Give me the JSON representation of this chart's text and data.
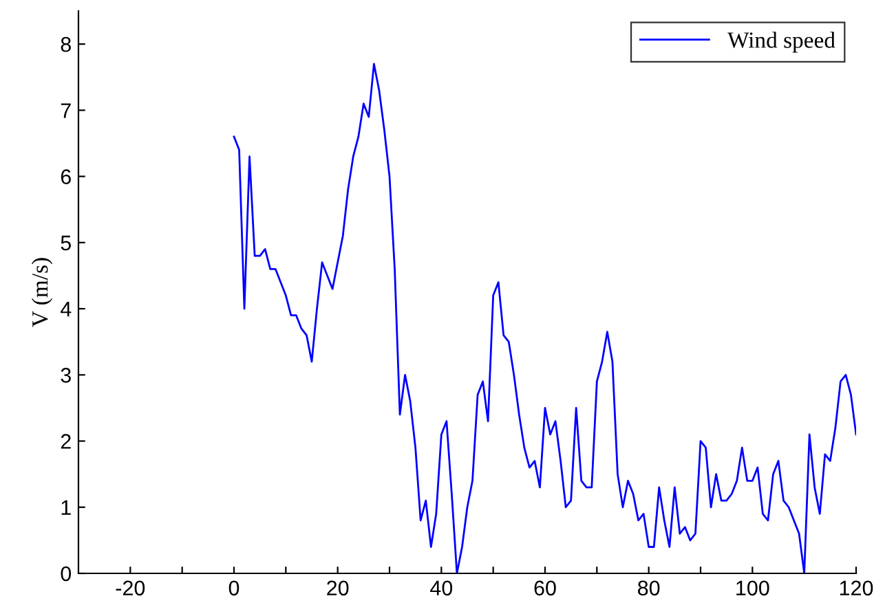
{
  "chart_data": {
    "type": "line",
    "ylabel": "V (m/s)",
    "x": [
      0,
      1,
      2,
      3,
      4,
      5,
      6,
      7,
      8,
      9,
      10,
      11,
      12,
      13,
      14,
      15,
      16,
      17,
      18,
      19,
      20,
      21,
      22,
      23,
      24,
      25,
      26,
      27,
      28,
      29,
      30,
      31,
      32,
      33,
      34,
      35,
      36,
      37,
      38,
      39,
      40,
      41,
      42,
      43,
      44,
      45,
      46,
      47,
      48,
      49,
      50,
      51,
      52,
      53,
      54,
      55,
      56,
      57,
      58,
      59,
      60,
      61,
      62,
      63,
      64,
      65,
      66,
      67,
      68,
      69,
      70,
      71,
      72,
      73,
      74,
      75,
      76,
      77,
      78,
      79,
      80,
      81,
      82,
      83,
      84,
      85,
      86,
      87,
      88,
      89,
      90,
      91,
      92,
      93,
      94,
      95,
      96,
      97,
      98,
      99,
      100,
      101,
      102,
      103,
      104,
      105,
      106,
      107,
      108,
      109,
      110,
      111,
      112,
      113,
      114,
      115,
      116,
      117,
      118,
      119,
      120
    ],
    "series": [
      {
        "name": "Wind speed",
        "color": "#0000ff",
        "values": [
          6.6,
          6.4,
          4.0,
          6.3,
          4.8,
          4.8,
          4.9,
          4.6,
          4.6,
          4.4,
          4.2,
          3.9,
          3.9,
          3.7,
          3.6,
          3.2,
          4.0,
          4.7,
          4.5,
          4.3,
          4.7,
          5.1,
          5.8,
          6.3,
          6.6,
          7.1,
          6.9,
          7.7,
          7.3,
          6.7,
          6.0,
          4.6,
          2.4,
          3.0,
          2.6,
          1.9,
          0.8,
          1.1,
          0.4,
          0.9,
          2.1,
          2.3,
          1.2,
          0.0,
          0.4,
          1.0,
          1.4,
          2.7,
          2.9,
          2.3,
          4.2,
          4.4,
          3.6,
          3.5,
          3.0,
          2.4,
          1.9,
          1.6,
          1.7,
          1.3,
          2.5,
          2.1,
          2.3,
          1.7,
          1.0,
          1.1,
          2.5,
          1.4,
          1.3,
          1.3,
          2.9,
          3.2,
          3.65,
          3.2,
          1.5,
          1.0,
          1.4,
          1.2,
          0.8,
          0.9,
          0.4,
          0.4,
          1.3,
          0.8,
          0.4,
          1.3,
          0.6,
          0.7,
          0.5,
          0.6,
          2.0,
          1.9,
          1.0,
          1.5,
          1.1,
          1.1,
          1.2,
          1.4,
          1.9,
          1.4,
          1.4,
          1.6,
          0.9,
          0.8,
          1.5,
          1.7,
          1.1,
          1.0,
          0.8,
          0.6,
          0.0,
          2.1,
          1.3,
          0.9,
          1.8,
          1.7,
          2.2,
          2.9,
          3.0,
          2.7,
          2.1
        ]
      }
    ],
    "xlim": [
      -30,
      120
    ],
    "ylim": [
      0,
      8.5
    ],
    "xticks": [
      -20,
      {
        "value": -10,
        "label": null
      },
      0,
      {
        "value": 10,
        "label": null
      },
      20,
      {
        "value": 30,
        "label": null
      },
      40,
      {
        "value": 50,
        "label": null
      },
      60,
      {
        "value": 70,
        "label": null
      },
      80,
      {
        "value": 90,
        "label": null
      },
      100,
      {
        "value": 110,
        "label": null
      },
      120
    ],
    "yticks": [
      0,
      1,
      2,
      3,
      4,
      5,
      6,
      7,
      8
    ],
    "legend": "top right",
    "grid": false,
    "marker": "none",
    "line_style": "solid"
  }
}
